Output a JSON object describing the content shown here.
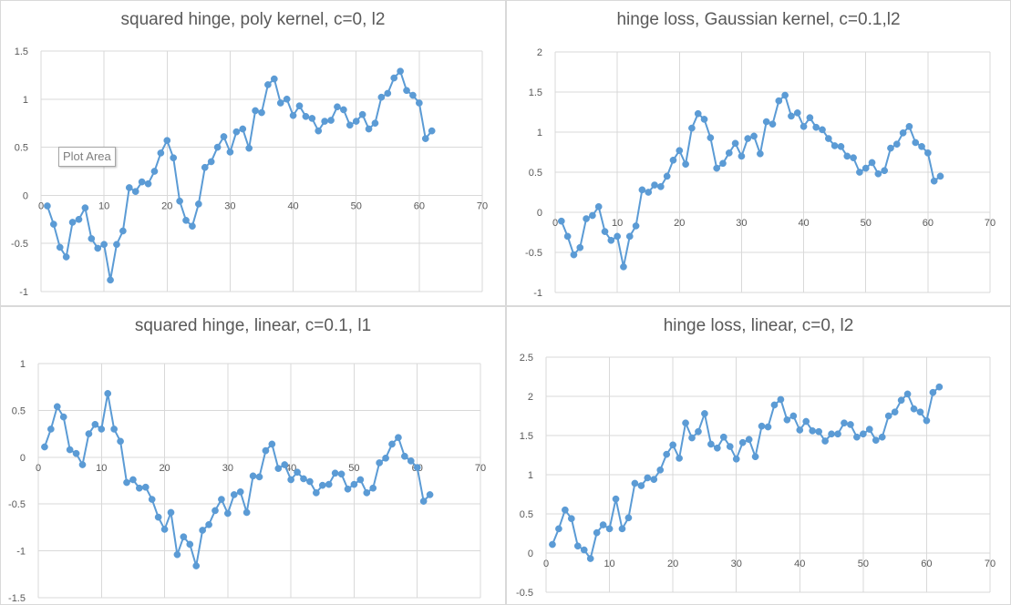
{
  "colors": {
    "series": "#5b9bd5",
    "grid": "#d9d9d9",
    "axis_text": "#595959",
    "title_text": "#595959",
    "background": "#ffffff"
  },
  "tooltip": {
    "label": "Plot Area"
  },
  "chart_data": [
    {
      "type": "line",
      "title": "squared hinge, poly kernel, c=0, l2",
      "xlabel": "",
      "ylabel": "",
      "xlim": [
        0,
        70
      ],
      "ylim": [
        -1,
        1.5
      ],
      "xticks": [
        0,
        10,
        20,
        30,
        40,
        50,
        60,
        70
      ],
      "yticks": [
        -1,
        -0.5,
        0,
        0.5,
        1,
        1.5
      ],
      "xtick_labels": [
        "0",
        "10",
        "20",
        "30",
        "40",
        "50",
        "60",
        "70"
      ],
      "ytick_labels": [
        "-1",
        "-0.5",
        "0",
        "0.5",
        "1",
        "1.5"
      ],
      "grid": true,
      "legend": "none",
      "markers": true,
      "x": [
        1,
        2,
        3,
        4,
        5,
        6,
        7,
        8,
        9,
        10,
        11,
        12,
        13,
        14,
        15,
        16,
        17,
        18,
        19,
        20,
        21,
        22,
        23,
        24,
        25,
        26,
        27,
        28,
        29,
        30,
        31,
        32,
        33,
        34,
        35,
        36,
        37,
        38,
        39,
        40,
        41,
        42,
        43,
        44,
        45,
        46,
        47,
        48,
        49,
        50,
        51,
        52,
        53,
        54,
        55,
        56,
        57,
        58,
        59,
        60,
        61,
        62
      ],
      "values": [
        -0.11,
        -0.3,
        -0.54,
        -0.64,
        -0.28,
        -0.25,
        -0.13,
        -0.45,
        -0.55,
        -0.51,
        -0.88,
        -0.51,
        -0.37,
        0.08,
        0.04,
        0.14,
        0.12,
        0.25,
        0.44,
        0.57,
        0.39,
        -0.06,
        -0.26,
        -0.32,
        -0.09,
        0.29,
        0.35,
        0.5,
        0.61,
        0.45,
        0.66,
        0.69,
        0.49,
        0.88,
        0.86,
        1.15,
        1.21,
        0.96,
        1.0,
        0.83,
        0.93,
        0.82,
        0.8,
        0.67,
        0.77,
        0.78,
        0.92,
        0.89,
        0.73,
        0.77,
        0.84,
        0.69,
        0.75,
        1.02,
        1.06,
        1.22,
        1.29,
        1.09,
        1.04,
        0.96,
        0.59,
        0.67
      ]
    },
    {
      "type": "line",
      "title": "hinge loss, Gaussian kernel, c=0.1,l2",
      "xlabel": "",
      "ylabel": "",
      "xlim": [
        0,
        70
      ],
      "ylim": [
        -1,
        2
      ],
      "xticks": [
        0,
        10,
        20,
        30,
        40,
        50,
        60,
        70
      ],
      "yticks": [
        -1,
        -0.5,
        0,
        0.5,
        1,
        1.5,
        2
      ],
      "xtick_labels": [
        "0",
        "10",
        "20",
        "30",
        "40",
        "50",
        "60",
        "70"
      ],
      "ytick_labels": [
        "-1",
        "-0.5",
        "0",
        "0.5",
        "1",
        "1.5",
        "2"
      ],
      "grid": true,
      "legend": "none",
      "markers": true,
      "x": [
        1,
        2,
        3,
        4,
        5,
        6,
        7,
        8,
        9,
        10,
        11,
        12,
        13,
        14,
        15,
        16,
        17,
        18,
        19,
        20,
        21,
        22,
        23,
        24,
        25,
        26,
        27,
        28,
        29,
        30,
        31,
        32,
        33,
        34,
        35,
        36,
        37,
        38,
        39,
        40,
        41,
        42,
        43,
        44,
        45,
        46,
        47,
        48,
        49,
        50,
        51,
        52,
        53,
        54,
        55,
        56,
        57,
        58,
        59,
        60,
        61,
        62
      ],
      "values": [
        -0.11,
        -0.3,
        -0.53,
        -0.44,
        -0.08,
        -0.04,
        0.07,
        -0.24,
        -0.35,
        -0.3,
        -0.68,
        -0.3,
        -0.17,
        0.28,
        0.25,
        0.34,
        0.32,
        0.45,
        0.65,
        0.77,
        0.6,
        1.05,
        1.23,
        1.16,
        0.93,
        0.55,
        0.61,
        0.74,
        0.86,
        0.7,
        0.92,
        0.95,
        0.73,
        1.13,
        1.1,
        1.39,
        1.46,
        1.2,
        1.24,
        1.07,
        1.18,
        1.06,
        1.03,
        0.92,
        0.83,
        0.82,
        0.7,
        0.68,
        0.5,
        0.55,
        0.62,
        0.48,
        0.52,
        0.8,
        0.85,
        0.99,
        1.07,
        0.87,
        0.82,
        0.74,
        0.39,
        0.45
      ]
    },
    {
      "type": "line",
      "title": "squared hinge, linear, c=0.1, l1",
      "xlabel": "",
      "ylabel": "",
      "xlim": [
        0,
        70
      ],
      "ylim": [
        -1.5,
        1
      ],
      "xticks": [
        0,
        10,
        20,
        30,
        40,
        50,
        60,
        70
      ],
      "yticks": [
        -1.5,
        -1,
        -0.5,
        0,
        0.5,
        1
      ],
      "xtick_labels": [
        "0",
        "10",
        "20",
        "30",
        "40",
        "50",
        "60",
        "70"
      ],
      "ytick_labels": [
        "-1.5",
        "-1",
        "-0.5",
        "0",
        "0.5",
        "1"
      ],
      "grid": true,
      "legend": "none",
      "markers": true,
      "x": [
        1,
        2,
        3,
        4,
        5,
        6,
        7,
        8,
        9,
        10,
        11,
        12,
        13,
        14,
        15,
        16,
        17,
        18,
        19,
        20,
        21,
        22,
        23,
        24,
        25,
        26,
        27,
        28,
        29,
        30,
        31,
        32,
        33,
        34,
        35,
        36,
        37,
        38,
        39,
        40,
        41,
        42,
        43,
        44,
        45,
        46,
        47,
        48,
        49,
        50,
        51,
        52,
        53,
        54,
        55,
        56,
        57,
        58,
        59,
        60,
        61,
        62
      ],
      "values": [
        0.11,
        0.3,
        0.54,
        0.43,
        0.08,
        0.04,
        -0.08,
        0.25,
        0.35,
        0.3,
        0.68,
        0.3,
        0.17,
        -0.27,
        -0.24,
        -0.33,
        -0.32,
        -0.45,
        -0.64,
        -0.77,
        -0.59,
        -1.04,
        -0.85,
        -0.93,
        -1.16,
        -0.78,
        -0.72,
        -0.57,
        -0.45,
        -0.6,
        -0.4,
        -0.37,
        -0.59,
        -0.2,
        -0.21,
        0.07,
        0.14,
        -0.12,
        -0.08,
        -0.24,
        -0.16,
        -0.23,
        -0.26,
        -0.38,
        -0.3,
        -0.29,
        -0.17,
        -0.18,
        -0.34,
        -0.29,
        -0.24,
        -0.38,
        -0.33,
        -0.06,
        -0.01,
        0.14,
        0.21,
        0.01,
        -0.04,
        -0.11,
        -0.47,
        -0.4
      ]
    },
    {
      "type": "line",
      "title": "hinge loss, linear, c=0, l2",
      "xlabel": "",
      "ylabel": "",
      "xlim": [
        0,
        70
      ],
      "ylim": [
        -0.5,
        2.5
      ],
      "xticks": [
        0,
        10,
        20,
        30,
        40,
        50,
        60,
        70
      ],
      "yticks": [
        -0.5,
        0,
        0.5,
        1,
        1.5,
        2,
        2.5
      ],
      "xtick_labels": [
        "0",
        "10",
        "20",
        "30",
        "40",
        "50",
        "60",
        "70"
      ],
      "ytick_labels": [
        "-0.5",
        "0",
        "0.5",
        "1",
        "1.5",
        "2",
        "2.5"
      ],
      "grid": true,
      "legend": "none",
      "markers": true,
      "x": [
        1,
        2,
        3,
        4,
        5,
        6,
        7,
        8,
        9,
        10,
        11,
        12,
        13,
        14,
        15,
        16,
        17,
        18,
        19,
        20,
        21,
        22,
        23,
        24,
        25,
        26,
        27,
        28,
        29,
        30,
        31,
        32,
        33,
        34,
        35,
        36,
        37,
        38,
        39,
        40,
        41,
        42,
        43,
        44,
        45,
        46,
        47,
        48,
        49,
        50,
        51,
        52,
        53,
        54,
        55,
        56,
        57,
        58,
        59,
        60,
        61,
        62
      ],
      "values": [
        0.11,
        0.31,
        0.55,
        0.44,
        0.09,
        0.04,
        -0.07,
        0.26,
        0.36,
        0.31,
        0.69,
        0.31,
        0.45,
        0.89,
        0.86,
        0.96,
        0.94,
        1.06,
        1.26,
        1.38,
        1.21,
        1.66,
        1.47,
        1.55,
        1.78,
        1.39,
        1.34,
        1.48,
        1.36,
        1.2,
        1.41,
        1.45,
        1.23,
        1.62,
        1.61,
        1.89,
        1.96,
        1.7,
        1.75,
        1.57,
        1.68,
        1.56,
        1.55,
        1.43,
        1.52,
        1.52,
        1.66,
        1.64,
        1.48,
        1.52,
        1.58,
        1.44,
        1.48,
        1.75,
        1.8,
        1.95,
        2.03,
        1.84,
        1.8,
        1.69,
        2.05,
        2.12
      ]
    }
  ]
}
